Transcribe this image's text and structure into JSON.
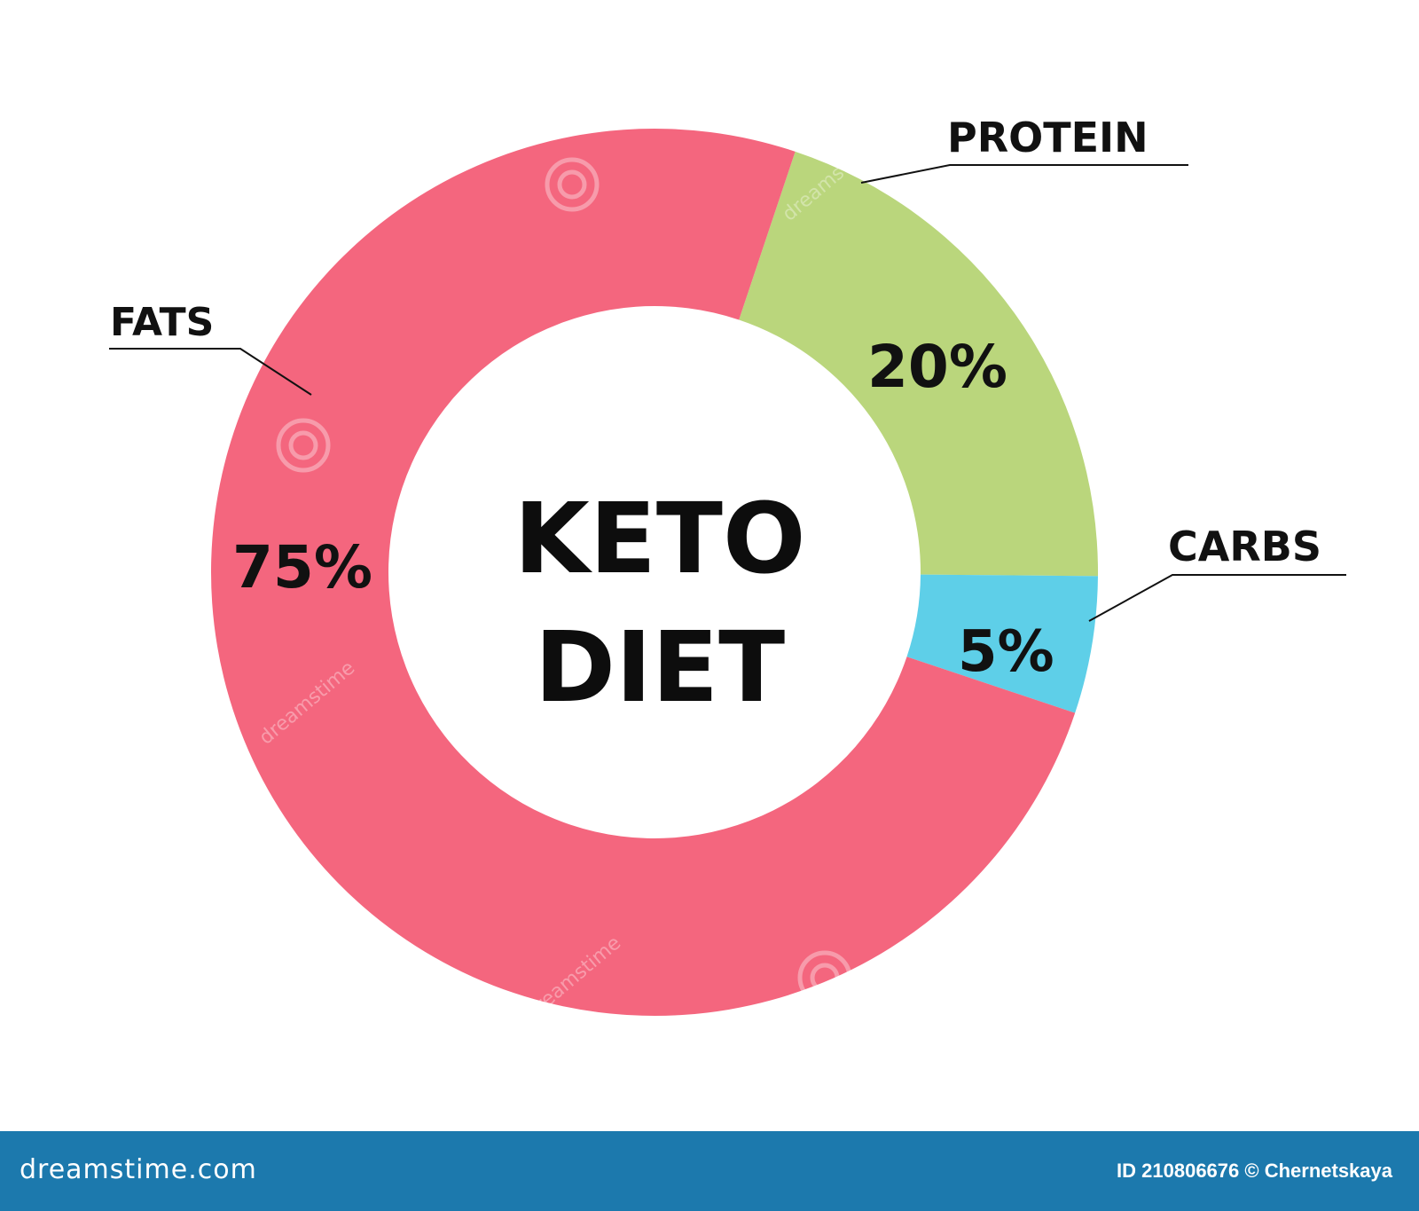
{
  "chart_data": {
    "type": "pie",
    "donut": true,
    "title": "KETO DIET",
    "title_lines": [
      "KETO",
      "DIET"
    ],
    "slices": [
      {
        "label": "FATS",
        "value": 75,
        "value_label": "75%",
        "color": "#f4667e"
      },
      {
        "label": "PROTEIN",
        "value": 20,
        "value_label": "20%",
        "color": "#bad67c"
      },
      {
        "label": "CARBS",
        "value": 5,
        "value_label": "5%",
        "color": "#5ecfe8"
      }
    ]
  },
  "watermark": {
    "text": "dreamstime"
  },
  "footer": {
    "site": "dreamstime.com",
    "id_text": "ID 210806676 © Chernetskaya",
    "background": "#1c79ad"
  }
}
